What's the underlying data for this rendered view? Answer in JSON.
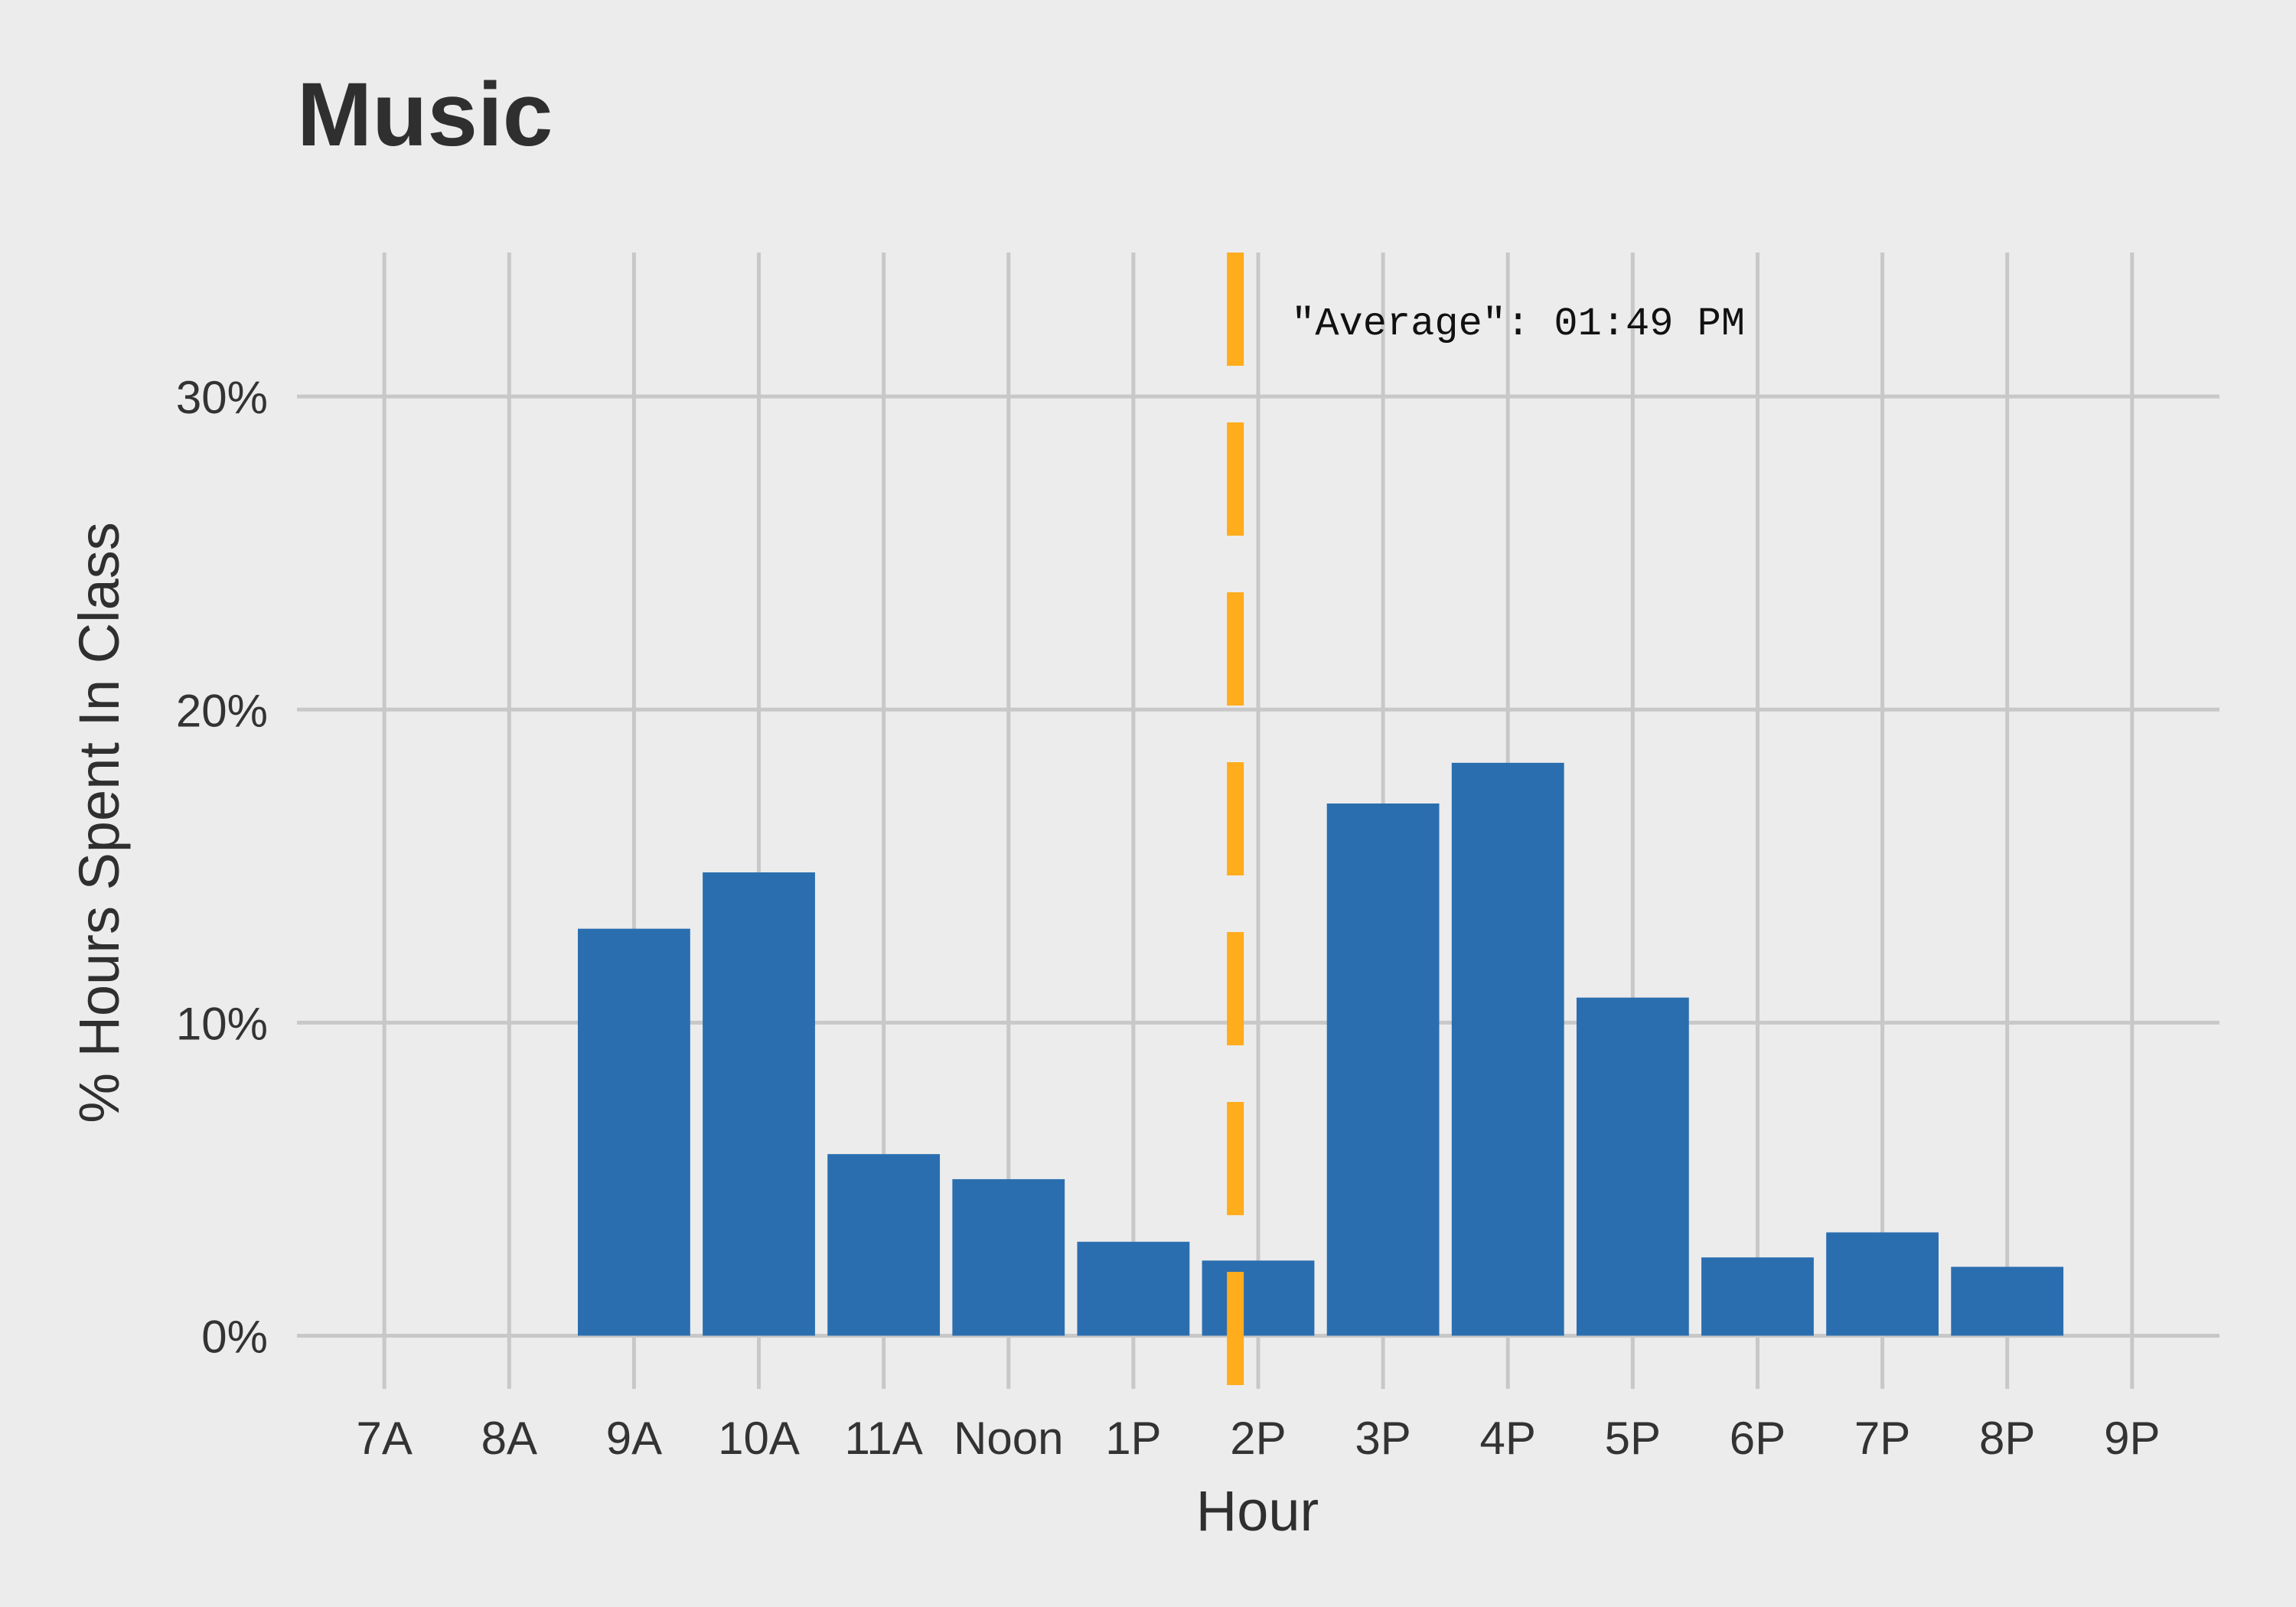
{
  "chart_data": {
    "type": "bar",
    "title": "Music",
    "xlabel": "Hour",
    "ylabel": "% Hours Spent In Class",
    "categories": [
      "7A",
      "8A",
      "9A",
      "10A",
      "11A",
      "Noon",
      "1P",
      "2P",
      "3P",
      "4P",
      "5P",
      "6P",
      "7P",
      "8P",
      "9P"
    ],
    "values": [
      0,
      0,
      13.0,
      14.8,
      5.8,
      5.0,
      3.0,
      2.4,
      17.0,
      18.3,
      10.8,
      2.5,
      3.3,
      2.2,
      0
    ],
    "y_ticks": [
      0,
      10,
      20,
      30
    ],
    "y_tick_labels": [
      "0%",
      "10%",
      "20%",
      "30%"
    ],
    "ylim": [
      -1.7,
      34.6
    ],
    "xlim": [
      6.3,
      21.7
    ],
    "x_start_hour": 7,
    "grid": true,
    "bar_color": "#2a6eb0",
    "reference_line": {
      "x": 13.817,
      "color": "#ffac1d",
      "style": "dashed",
      "label": "\"Average\": 01:49 PM"
    }
  },
  "colors": {
    "background": "#ececec",
    "grid": "#c8c8c8",
    "bar": "#2a6eb0",
    "average_line": "#ffac1d"
  }
}
